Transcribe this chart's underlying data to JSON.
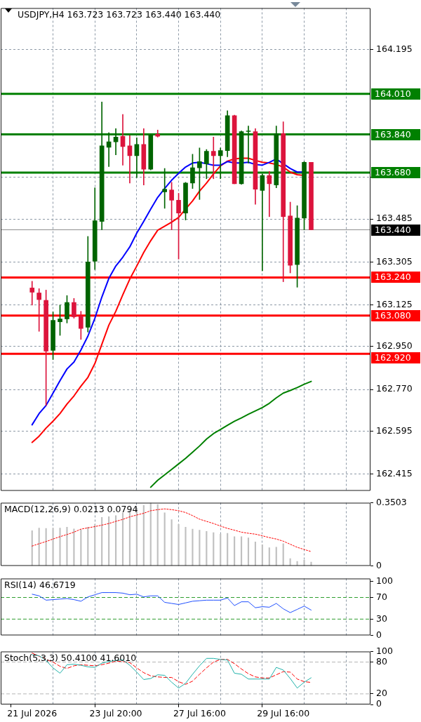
{
  "chart_data": [
    {
      "type": "candlestick",
      "title": "USDJPY,H4 163.723 163.723 163.440 163.440",
      "categories": [
        null,
        null,
        null,
        null,
        null,
        null,
        null,
        null,
        null,
        null,
        null,
        null,
        null,
        null,
        null,
        null,
        null,
        null,
        null,
        null,
        null,
        null,
        null,
        null,
        null,
        null,
        null,
        null,
        null,
        null,
        null,
        null,
        null,
        null,
        null,
        null,
        null,
        null,
        null,
        null,
        null,
        null,
        null,
        null,
        null,
        null,
        null,
        null,
        null
      ],
      "ohlc": [
        [
          163.196,
          163.224,
          163.124,
          163.178
        ],
        [
          163.175,
          163.193,
          163.014,
          163.147
        ],
        [
          163.144,
          163.187,
          162.703,
          162.931
        ],
        [
          162.934,
          163.095,
          162.896,
          163.06
        ],
        [
          163.054,
          163.124,
          162.997,
          163.066
        ],
        [
          163.066,
          163.164,
          163.049,
          163.135
        ],
        [
          163.135,
          163.152,
          163.069,
          163.075
        ],
        [
          163.078,
          163.098,
          162.98,
          163.026
        ],
        [
          163.031,
          163.412,
          163.011,
          163.305
        ],
        [
          163.308,
          163.616,
          163.273,
          163.478
        ],
        [
          163.475,
          163.976,
          163.44,
          163.792
        ],
        [
          163.786,
          163.847,
          163.705,
          163.809
        ],
        [
          163.809,
          163.864,
          163.754,
          163.829
        ],
        [
          163.832,
          163.924,
          163.711,
          163.789
        ],
        [
          163.792,
          163.835,
          163.636,
          163.751
        ],
        [
          163.751,
          163.826,
          163.659,
          163.798
        ],
        [
          163.798,
          163.864,
          163.628,
          163.694
        ],
        [
          163.694,
          163.841,
          163.691,
          163.838
        ],
        [
          163.841,
          163.858,
          163.829,
          163.832
        ],
        [
          163.599,
          163.697,
          163.53,
          163.61
        ],
        [
          163.607,
          163.639,
          163.44,
          163.564
        ],
        [
          163.564,
          163.593,
          163.317,
          163.51
        ],
        [
          163.51,
          163.639,
          163.481,
          163.636
        ],
        [
          163.636,
          163.757,
          163.613,
          163.7
        ],
        [
          163.7,
          163.783,
          163.567,
          163.726
        ],
        [
          163.717,
          163.777,
          163.654,
          163.769
        ],
        [
          163.769,
          163.829,
          163.654,
          163.751
        ],
        [
          163.751,
          163.783,
          163.654,
          163.772
        ],
        [
          163.772,
          163.939,
          163.746,
          163.919
        ],
        [
          163.919,
          163.921,
          163.633,
          163.633
        ],
        [
          163.633,
          163.855,
          163.631,
          163.852
        ],
        [
          163.852,
          163.875,
          163.72,
          163.855
        ],
        [
          163.852,
          163.864,
          163.547,
          163.61
        ],
        [
          163.605,
          163.674,
          163.268,
          163.668
        ],
        [
          163.668,
          163.685,
          163.495,
          163.633
        ],
        [
          163.628,
          163.875,
          163.616,
          163.844
        ],
        [
          163.844,
          163.893,
          163.222,
          163.495
        ],
        [
          163.498,
          163.556,
          163.259,
          163.291
        ],
        [
          163.294,
          163.541,
          163.199,
          163.489
        ],
        [
          163.489,
          163.726,
          163.44,
          163.723
        ],
        [
          163.723,
          163.723,
          163.44,
          163.44
        ],
        null,
        null,
        null,
        null,
        null,
        null,
        null,
        null
      ],
      "colors": [
        "#dc143c",
        "#dc143c",
        "#dc143c",
        "#006400",
        "#006400",
        "#006400",
        "#dc143c",
        "#dc143c",
        "#006400",
        "#006400",
        "#006400",
        "#006400",
        "#006400",
        "#dc143c",
        "#dc143c",
        "#006400",
        "#dc143c",
        "#006400",
        "#dc143c",
        "#006400",
        "#dc143c",
        "#dc143c",
        "#006400",
        "#006400",
        "#006400",
        "#006400",
        "#dc143c",
        "#006400",
        "#006400",
        "#dc143c",
        "#006400",
        "#006400",
        "#dc143c",
        "#006400",
        "#dc143c",
        "#006400",
        "#dc143c",
        "#dc143c",
        "#006400",
        "#006400",
        "#dc143c",
        null,
        null,
        null,
        null,
        null,
        null,
        null,
        null
      ],
      "series": [
        {
          "type": "line",
          "color": "#0000ff",
          "values": [
            162.622,
            162.669,
            162.703,
            162.755,
            162.807,
            162.856,
            162.885,
            162.936,
            162.994,
            163.069,
            163.158,
            163.236,
            163.288,
            163.325,
            163.368,
            163.426,
            163.475,
            163.527,
            163.576,
            163.613,
            163.648,
            163.677,
            163.703,
            163.72,
            163.723,
            163.717,
            163.711,
            163.711,
            163.726,
            163.72,
            163.72,
            163.723,
            163.714,
            163.711,
            163.723,
            163.737,
            163.717,
            163.697,
            163.682,
            163.682,
            null,
            null,
            null,
            null,
            null,
            null,
            null,
            null,
            null
          ]
        },
        {
          "type": "line",
          "color": "#ff0000",
          "values": [
            162.548,
            162.574,
            162.608,
            162.637,
            162.669,
            162.709,
            162.743,
            162.784,
            162.821,
            162.879,
            162.96,
            163.04,
            163.098,
            163.167,
            163.233,
            163.288,
            163.345,
            163.394,
            163.438,
            163.455,
            163.472,
            163.492,
            163.527,
            163.561,
            163.602,
            163.636,
            163.674,
            163.708,
            163.728,
            163.737,
            163.74,
            163.74,
            163.731,
            163.723,
            163.72,
            163.714,
            163.703,
            163.682,
            163.671,
            163.668,
            null,
            null,
            null,
            null,
            null,
            null,
            null,
            null,
            null
          ]
        },
        {
          "type": "line",
          "color": "#008000",
          "values": [
            null,
            null,
            null,
            null,
            null,
            null,
            null,
            null,
            null,
            null,
            null,
            null,
            null,
            null,
            null,
            null,
            null,
            162.36,
            162.389,
            162.412,
            162.435,
            162.458,
            162.481,
            162.507,
            162.533,
            162.562,
            162.585,
            162.602,
            162.62,
            162.637,
            162.651,
            162.666,
            162.68,
            162.694,
            162.712,
            162.735,
            162.755,
            162.766,
            162.778,
            162.792,
            162.804,
            null,
            null,
            null,
            null,
            null,
            null,
            null,
            null
          ]
        }
      ],
      "ylim": [
        162.345,
        164.37
      ],
      "yticks": [
        164.195,
        {
          "value": 163.66,
          "label": null
        },
        163.485,
        163.305,
        163.125,
        {
          "value": 162.95,
          "label": "162.950"
        },
        {
          "value": 162.77,
          "label": "162.770"
        },
        162.595,
        162.415
      ],
      "ref_lines": [
        {
          "axis": "y",
          "value": 164.01,
          "label": "164.010",
          "color": "#008000"
        },
        {
          "axis": "y",
          "value": 163.84,
          "label": "163.840",
          "color": "#008000"
        },
        {
          "axis": "y",
          "value": 163.68,
          "label": "163.680",
          "color": "#008000"
        },
        {
          "axis": "y",
          "value": 163.44,
          "label": "163.440",
          "color": "#000000"
        },
        {
          "axis": "y",
          "value": 163.24,
          "label": "163.240",
          "color": "#ff0000"
        },
        {
          "axis": "y",
          "value": 163.08,
          "label": "163.080",
          "color": "#ff0000"
        },
        {
          "axis": "y",
          "value": 162.92,
          "label": "162.920",
          "color": "#ff0000"
        }
      ],
      "grid": true,
      "tick_labels": "y"
    },
    {
      "type": "bar",
      "title": "MACD(12,26,9) 0.0213 0.0794",
      "categories": [
        null,
        null,
        null,
        null,
        null,
        null,
        null,
        null,
        null,
        null,
        null,
        null,
        null,
        null,
        null,
        null,
        null,
        null,
        null,
        null,
        null,
        null,
        null,
        null,
        null,
        null,
        null,
        null,
        null,
        null,
        null,
        null,
        null,
        null,
        null,
        null,
        null,
        null,
        null,
        null,
        null,
        null,
        null,
        null,
        null,
        null,
        null,
        null,
        null
      ],
      "series": [
        {
          "type": "bar",
          "color": "#c0c0c0",
          "values": [
            0.195,
            0.21,
            0.208,
            0.21,
            0.21,
            0.215,
            0.205,
            0.201,
            0.215,
            0.231,
            0.269,
            0.273,
            0.279,
            0.295,
            0.305,
            0.32,
            0.335,
            0.3503,
            0.34,
            0.295,
            0.257,
            0.23,
            0.215,
            0.204,
            0.198,
            0.191,
            0.185,
            0.177,
            0.181,
            0.162,
            0.162,
            0.155,
            0.133,
            0.117,
            0.101,
            0.104,
            0.123,
            0.041,
            0.025,
            0.032,
            0.0213,
            null,
            null,
            null,
            null,
            null,
            null,
            null,
            null
          ]
        },
        {
          "type": "line",
          "color": "#ff0000",
          "line_style": "dotted",
          "values": [
            0.11,
            0.123,
            0.135,
            0.149,
            0.162,
            0.174,
            0.187,
            0.204,
            0.211,
            0.218,
            0.226,
            0.235,
            0.247,
            0.258,
            0.272,
            0.282,
            0.292,
            0.306,
            0.312,
            0.316,
            0.312,
            0.306,
            0.296,
            0.279,
            0.259,
            0.247,
            0.235,
            0.221,
            0.208,
            0.198,
            0.187,
            0.181,
            0.176,
            0.167,
            0.157,
            0.149,
            0.137,
            0.12,
            0.103,
            0.091,
            0.0794,
            null,
            null,
            null,
            null,
            null,
            null,
            null,
            null
          ]
        }
      ],
      "ylim": [
        0,
        0.3503
      ],
      "yticks": [
        0,
        0.3503
      ],
      "grid": "x",
      "tick_labels": "y"
    },
    {
      "type": "line",
      "title": "RSI(14) 46.6719",
      "categories": [
        null,
        null,
        null,
        null,
        null,
        null,
        null,
        null,
        null,
        null,
        null,
        null,
        null,
        null,
        null,
        null,
        null,
        null,
        null,
        null,
        null,
        null,
        null,
        null,
        null,
        null,
        null,
        null,
        null,
        null,
        null,
        null,
        null,
        null,
        null,
        null,
        null,
        null,
        null,
        null,
        null,
        null,
        null,
        null,
        null,
        null,
        null,
        null,
        null
      ],
      "color": "#2050ff",
      "values": [
        76,
        73,
        65,
        66,
        67,
        68,
        66,
        63,
        71,
        75,
        79,
        79,
        79,
        78,
        75,
        76,
        71,
        73,
        73,
        61,
        59,
        57,
        60,
        63,
        64,
        65,
        65,
        65,
        69,
        55,
        62,
        62,
        51,
        53,
        52,
        59,
        49,
        42,
        48,
        54,
        46.6719,
        null,
        null,
        null,
        null,
        null,
        null,
        null,
        null
      ],
      "ylim": [
        0,
        105
      ],
      "yticks": [
        0,
        30,
        70,
        100
      ],
      "ref_lines": [
        {
          "axis": "y",
          "value": 70,
          "color": "#2e9e2e",
          "line_style": "dashed"
        },
        {
          "axis": "y",
          "value": 30,
          "color": "#2e9e2e",
          "line_style": "dashed"
        }
      ],
      "grid": "x",
      "tick_labels": "y"
    },
    {
      "type": "line",
      "title": "Stoch(5,3,3) 50.4100 41.6010",
      "categories": [
        "21 Jul 2026",
        null,
        null,
        null,
        null,
        null,
        null,
        null,
        null,
        null,
        null,
        null,
        "23 Jul 20:00",
        null,
        null,
        null,
        null,
        null,
        null,
        null,
        null,
        null,
        null,
        null,
        "27 Jul 16:00",
        null,
        null,
        null,
        null,
        null,
        null,
        null,
        null,
        null,
        null,
        null,
        "29 Jul 16:00",
        null,
        null,
        null,
        null,
        null,
        null,
        null,
        null,
        null,
        null,
        null,
        null
      ],
      "series": [
        {
          "color": "#20b2aa",
          "values": [
            94,
            92,
            83,
            69,
            59,
            75,
            76,
            74,
            71,
            70,
            78,
            81,
            83,
            84,
            74,
            61,
            47,
            49,
            56,
            55,
            42,
            31,
            40,
            57,
            73,
            87,
            87,
            85,
            84,
            59,
            57,
            48,
            48,
            48,
            48,
            70,
            65,
            49,
            31,
            42,
            50.41,
            null,
            null,
            null,
            null,
            null,
            null,
            null,
            null
          ]
        },
        {
          "color": "#ff0000",
          "line_style": "dashed",
          "values": [
            97,
            91,
            85,
            80,
            72,
            68,
            73,
            75,
            74,
            73,
            75,
            78,
            82,
            81,
            79,
            69,
            60,
            54,
            52,
            51,
            51,
            43,
            38,
            44,
            57,
            69,
            80,
            85,
            85,
            77,
            67,
            58,
            52,
            50,
            50,
            56,
            62,
            61,
            48,
            43,
            41.601,
            null,
            null,
            null,
            null,
            null,
            null,
            null,
            null
          ]
        }
      ],
      "ylim": [
        0,
        100
      ],
      "yticks": [
        0,
        20,
        80,
        100
      ],
      "ref_lines": [
        {
          "axis": "y",
          "value": 80,
          "color": "#b4b4b4",
          "line_style": "dashed"
        },
        {
          "axis": "y",
          "value": 20,
          "color": "#b4b4b4",
          "line_style": "dashed"
        }
      ],
      "grid": "x"
    }
  ]
}
